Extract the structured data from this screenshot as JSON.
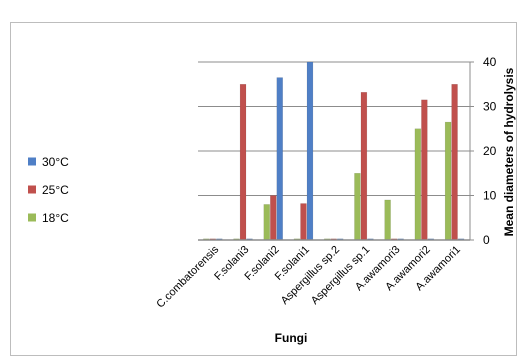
{
  "chart_data": {
    "type": "bar",
    "categories": [
      "C.combatorensis",
      "F.solani3",
      "F.solani2",
      "F.solani1",
      "Aspergillus sp.2",
      "Aspergillus sp.1",
      "A.awamori3",
      "A.awamori2",
      "A.awamori1"
    ],
    "series": [
      {
        "name": "30°C",
        "color": "#4f7fc6",
        "values": [
          0,
          0,
          36.5,
          40,
          0,
          0,
          0,
          0,
          0
        ]
      },
      {
        "name": "25°C",
        "color": "#c0504d",
        "values": [
          0,
          35,
          10,
          8.2,
          0,
          33.2,
          0,
          31.5,
          35
        ]
      },
      {
        "name": "18°C",
        "color": "#9bbb59",
        "values": [
          0,
          0,
          8,
          0,
          0,
          15,
          9,
          25,
          26.5
        ]
      }
    ],
    "bar_order": [
      "18°C",
      "25°C",
      "30°C"
    ],
    "xlabel": "Fungi",
    "ylabel": "Mean diameters of hydrolysis",
    "ylim": [
      0,
      40
    ],
    "yticks": [
      "0",
      "10",
      "20",
      "30",
      "40"
    ],
    "y_axis_side": "right",
    "grid": true,
    "legend": "left"
  }
}
